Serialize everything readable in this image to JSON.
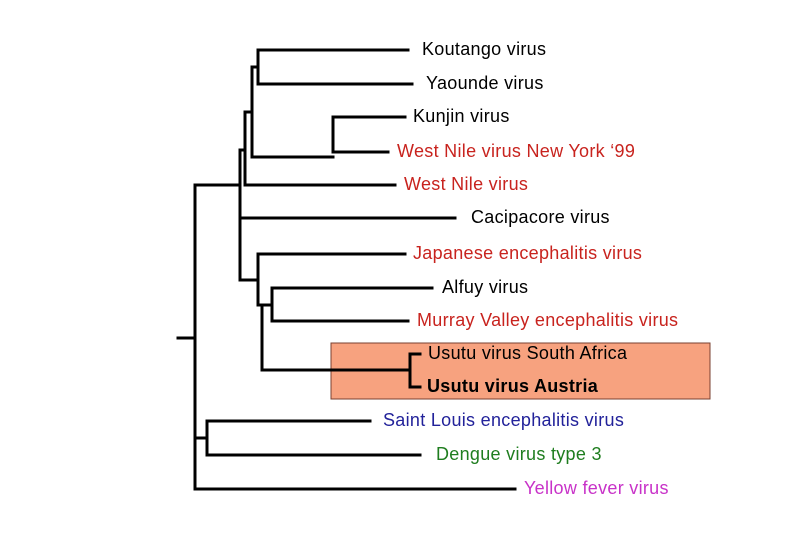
{
  "leaves": [
    {
      "label": "Koutango virus",
      "color": "#000000"
    },
    {
      "label": "Yaounde virus",
      "color": "#000000"
    },
    {
      "label": "Kunjin virus",
      "color": "#000000"
    },
    {
      "label": "West Nile virus New York ‘99",
      "color": "#c8231e"
    },
    {
      "label": "West Nile virus",
      "color": "#c8231e"
    },
    {
      "label": "Cacipacore virus",
      "color": "#000000"
    },
    {
      "label": "Japanese encephalitis virus",
      "color": "#c8231e"
    },
    {
      "label": "Alfuy virus",
      "color": "#000000"
    },
    {
      "label": "Murray Valley encephalitis virus",
      "color": "#c8231e"
    },
    {
      "label": "Usutu virus South Africa",
      "color": "#000000"
    },
    {
      "label": "Usutu virus Austria",
      "color": "#000000",
      "bold": true
    },
    {
      "label": "Saint Louis encephalitis virus",
      "color": "#22229a"
    },
    {
      "label": "Dengue virus type 3",
      "color": "#1f7d1f"
    },
    {
      "label": "Yellow fever virus",
      "color": "#c832c8"
    }
  ]
}
